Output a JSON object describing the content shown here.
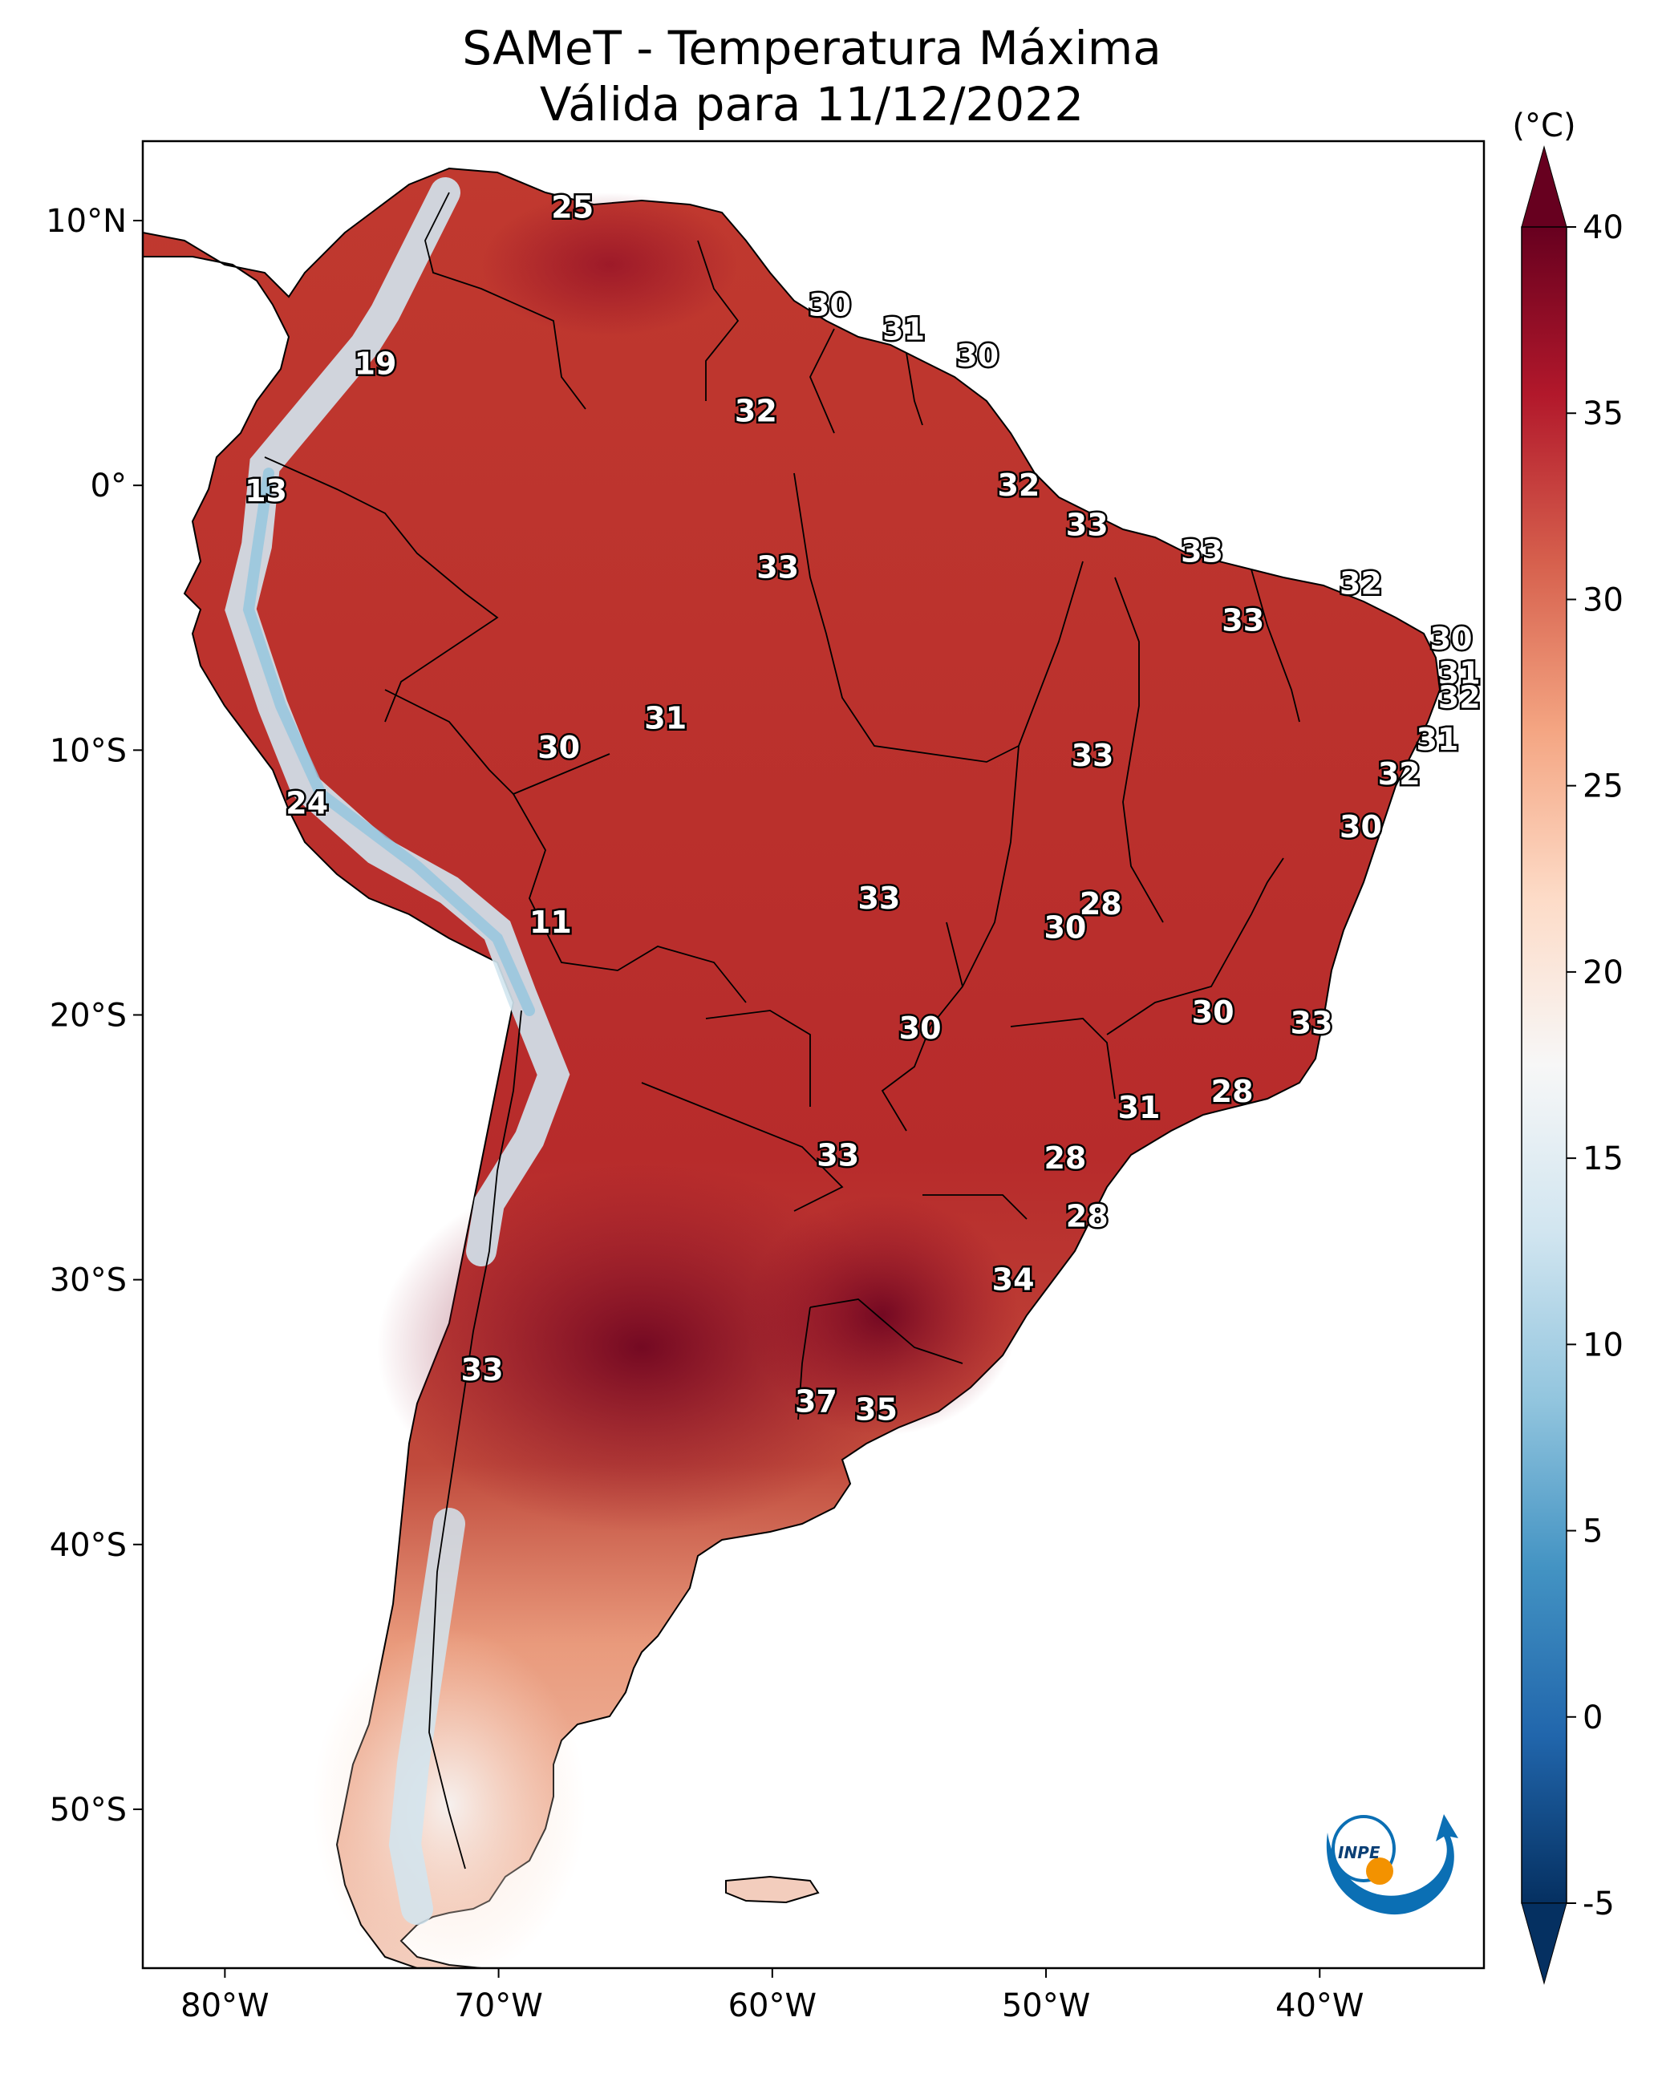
{
  "title": {
    "line1": "SAMeT - Temperatura Máxima",
    "line2": "Válida para 11/12/2022"
  },
  "map": {
    "extent": {
      "lon_min": -83,
      "lon_max": -34,
      "lat_min": -56,
      "lat_max": 13
    },
    "lat_labels": [
      {
        "lat": 10,
        "label": "10°N"
      },
      {
        "lat": 0,
        "label": "0°"
      },
      {
        "lat": -10,
        "label": "10°S"
      },
      {
        "lat": -20,
        "label": "20°S"
      },
      {
        "lat": -30,
        "label": "30°S"
      },
      {
        "lat": -40,
        "label": "40°S"
      },
      {
        "lat": -50,
        "label": "50°S"
      }
    ],
    "lon_labels": [
      {
        "lon": -80,
        "label": "80°W"
      },
      {
        "lon": -70,
        "label": "70°W"
      },
      {
        "lon": -60,
        "label": "60°W"
      },
      {
        "lon": -50,
        "label": "50°W"
      },
      {
        "lon": -40,
        "label": "40°W"
      }
    ],
    "city_values": [
      {
        "lon": -67.3,
        "lat": 10.5,
        "value": "25"
      },
      {
        "lon": -74.5,
        "lat": 4.6,
        "value": "19"
      },
      {
        "lon": -78.5,
        "lat": -0.2,
        "value": "13"
      },
      {
        "lon": -57.9,
        "lat": 6.8,
        "value": "30"
      },
      {
        "lon": -55.2,
        "lat": 5.9,
        "value": "31"
      },
      {
        "lon": -52.5,
        "lat": 4.9,
        "value": "30"
      },
      {
        "lon": -60.6,
        "lat": 2.8,
        "value": "32"
      },
      {
        "lon": -51.0,
        "lat": 0.0,
        "value": "32"
      },
      {
        "lon": -48.5,
        "lat": -1.5,
        "value": "33"
      },
      {
        "lon": -44.3,
        "lat": -2.5,
        "value": "33"
      },
      {
        "lon": -38.5,
        "lat": -3.7,
        "value": "32"
      },
      {
        "lon": -42.8,
        "lat": -5.1,
        "value": "33"
      },
      {
        "lon": -59.8,
        "lat": -3.1,
        "value": "33"
      },
      {
        "lon": -35.2,
        "lat": -5.8,
        "value": "30"
      },
      {
        "lon": -34.9,
        "lat": -7.1,
        "value": "31"
      },
      {
        "lon": -34.9,
        "lat": -8.0,
        "value": "32"
      },
      {
        "lon": -63.9,
        "lat": -8.8,
        "value": "31"
      },
      {
        "lon": -67.8,
        "lat": -9.9,
        "value": "30"
      },
      {
        "lon": -35.7,
        "lat": -9.6,
        "value": "31"
      },
      {
        "lon": -48.3,
        "lat": -10.2,
        "value": "33"
      },
      {
        "lon": -37.1,
        "lat": -10.9,
        "value": "32"
      },
      {
        "lon": -38.5,
        "lat": -12.9,
        "value": "30"
      },
      {
        "lon": -77.0,
        "lat": -12.0,
        "value": "24"
      },
      {
        "lon": -48.0,
        "lat": -15.8,
        "value": "28"
      },
      {
        "lon": -49.3,
        "lat": -16.7,
        "value": "30"
      },
      {
        "lon": -56.1,
        "lat": -15.6,
        "value": "33"
      },
      {
        "lon": -68.1,
        "lat": -16.5,
        "value": "11"
      },
      {
        "lon": -54.6,
        "lat": -20.5,
        "value": "30"
      },
      {
        "lon": -43.9,
        "lat": -19.9,
        "value": "30"
      },
      {
        "lon": -40.3,
        "lat": -20.3,
        "value": "33"
      },
      {
        "lon": -43.2,
        "lat": -22.9,
        "value": "28"
      },
      {
        "lon": -46.6,
        "lat": -23.5,
        "value": "31"
      },
      {
        "lon": -49.3,
        "lat": -25.4,
        "value": "28"
      },
      {
        "lon": -57.6,
        "lat": -25.3,
        "value": "33"
      },
      {
        "lon": -48.5,
        "lat": -27.6,
        "value": "28"
      },
      {
        "lon": -51.2,
        "lat": -30.0,
        "value": "34"
      },
      {
        "lon": -70.6,
        "lat": -33.4,
        "value": "33"
      },
      {
        "lon": -58.4,
        "lat": -34.6,
        "value": "37"
      },
      {
        "lon": -56.2,
        "lat": -34.9,
        "value": "35"
      }
    ]
  },
  "colorbar": {
    "unit": "(°C)",
    "min": -5,
    "max": 40,
    "ticks": [
      {
        "value": 40,
        "label": "40"
      },
      {
        "value": 35,
        "label": "35"
      },
      {
        "value": 30,
        "label": "30"
      },
      {
        "value": 25,
        "label": "25"
      },
      {
        "value": 20,
        "label": "20"
      },
      {
        "value": 15,
        "label": "15"
      },
      {
        "value": 10,
        "label": "10"
      },
      {
        "value": 5,
        "label": "5"
      },
      {
        "value": 0,
        "label": "0"
      },
      {
        "value": -5,
        "label": "-5"
      }
    ],
    "colors": [
      "#053061",
      "#2166ac",
      "#4393c3",
      "#92c5de",
      "#d1e5f0",
      "#f7f7f7",
      "#fddbc7",
      "#f4a582",
      "#d6604d",
      "#b2182b",
      "#67001f"
    ]
  },
  "logo": {
    "text": "INPE"
  }
}
